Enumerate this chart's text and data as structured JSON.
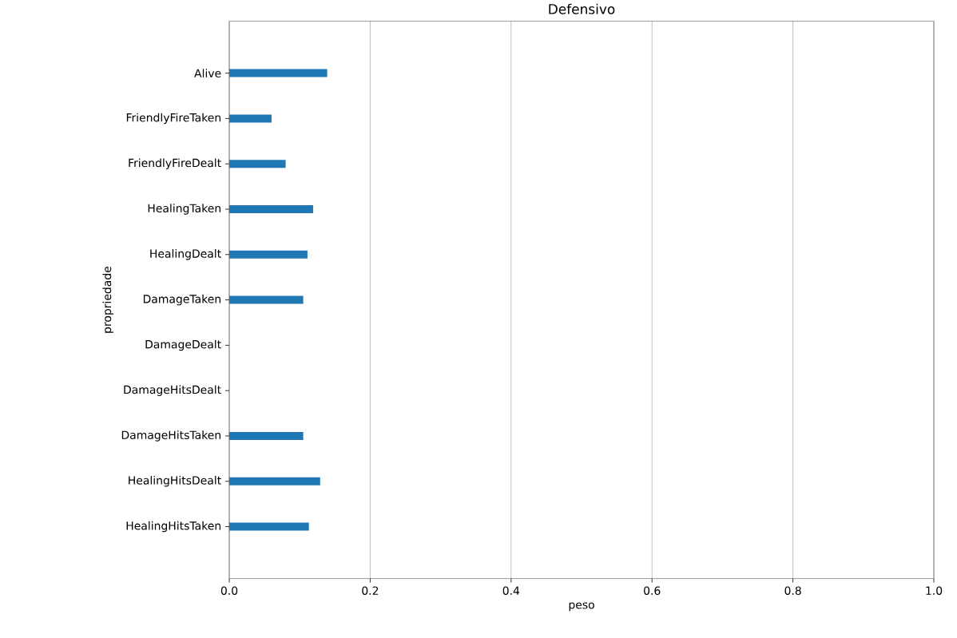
{
  "chart_data": {
    "type": "bar",
    "orientation": "horizontal",
    "title": "Defensivo",
    "xlabel": "peso",
    "ylabel": "propriedade",
    "categories": [
      "Alive",
      "FriendlyFireTaken",
      "FriendlyFireDealt",
      "HealingTaken",
      "HealingDealt",
      "DamageTaken",
      "DamageDealt",
      "DamageHitsDealt",
      "DamageHitsTaken",
      "HealingHitsDealt",
      "HealingHitsTaken"
    ],
    "values": [
      0.139,
      0.06,
      0.08,
      0.119,
      0.111,
      0.105,
      0,
      0,
      0.105,
      0.129,
      0.113
    ],
    "color": "#1f77b4",
    "xlim": [
      0,
      1
    ],
    "xticks": [
      {
        "value": 0,
        "label": "0.0"
      },
      {
        "value": 0.2,
        "label": "0.2"
      },
      {
        "value": 0.4,
        "label": "0.4"
      },
      {
        "value": 0.6,
        "label": "0.6"
      },
      {
        "value": 0.8,
        "label": "0.8"
      },
      {
        "value": 1,
        "label": "1.0"
      }
    ],
    "grid": "x"
  }
}
